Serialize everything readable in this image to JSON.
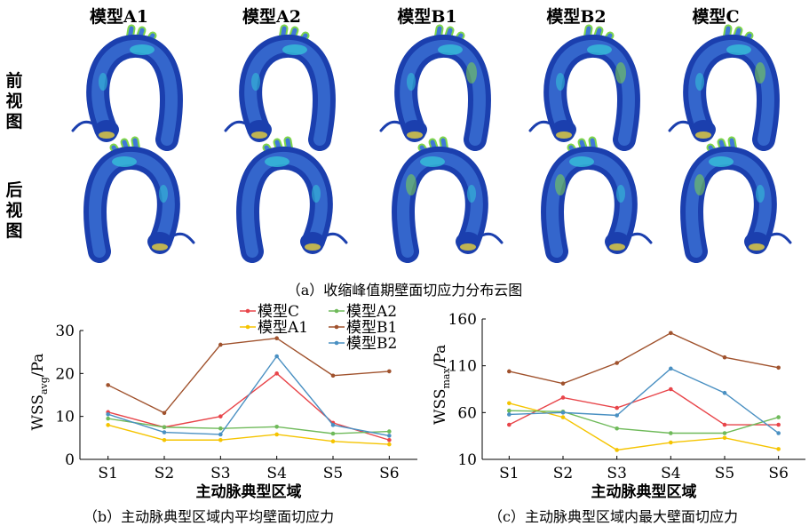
{
  "figure_a": {
    "models": [
      "模型A1",
      "模型A2",
      "模型B1",
      "模型B2",
      "模型C"
    ],
    "row_front": [
      "前",
      "视",
      "图"
    ],
    "row_back": [
      "后",
      "视",
      "图"
    ],
    "caption": "（a）收缩峰值期壁面切应力分布云图"
  },
  "colors": {
    "vessel_dark": "#1b3fae",
    "vessel_mid": "#3f78d8",
    "hot_cyan": "#35c7d9",
    "hot_green": "#7fd64a",
    "hot_yellow": "#e8d23b"
  },
  "chart_data": [
    {
      "type": "line",
      "categories": [
        "S1",
        "S2",
        "S3",
        "S4",
        "S5",
        "S6"
      ],
      "ylabel_main": "WSS",
      "ylabel_sub": "avg",
      "ylabel_unit": "/Pa",
      "xlabel": "主动脉典型区域",
      "ylim": [
        0,
        30
      ],
      "yticks": [
        "0",
        "10",
        "20",
        "30"
      ],
      "legend_position": "top",
      "caption": "（b）主动脉典型区域内平均壁面切应力",
      "series": [
        {
          "name": "模型C",
          "color": "#e8454a",
          "values": [
            11.0,
            7.5,
            10.0,
            20.0,
            8.5,
            4.5
          ]
        },
        {
          "name": "模型A1",
          "color": "#f5c400",
          "values": [
            8.0,
            4.5,
            4.5,
            5.8,
            4.2,
            3.5
          ]
        },
        {
          "name": "模型A2",
          "color": "#6fba5a",
          "values": [
            9.5,
            7.5,
            7.2,
            7.6,
            6.0,
            6.5
          ]
        },
        {
          "name": "模型B1",
          "color": "#a0522d",
          "values": [
            17.3,
            10.8,
            26.7,
            28.2,
            19.5,
            20.5
          ]
        },
        {
          "name": "模型B2",
          "color": "#4a90c2",
          "values": [
            10.5,
            6.3,
            5.8,
            24.0,
            8.0,
            5.5
          ]
        }
      ]
    },
    {
      "type": "line",
      "categories": [
        "S1",
        "S2",
        "S3",
        "S4",
        "S5",
        "S6"
      ],
      "ylabel_main": "WSS",
      "ylabel_sub": "max",
      "ylabel_unit": "/Pa",
      "xlabel": "主动脉典型区域",
      "ylim": [
        10,
        160
      ],
      "yticks": [
        "10",
        "60",
        "110",
        "160"
      ],
      "caption": "（c）主动脉典型区域内最大壁面切应力",
      "series": [
        {
          "color": "#e8454a",
          "values": [
            47,
            76,
            65,
            85,
            47,
            47
          ]
        },
        {
          "color": "#f5c400",
          "values": [
            70,
            55,
            20,
            28,
            33,
            21
          ]
        },
        {
          "color": "#6fba5a",
          "values": [
            62,
            61,
            43,
            38,
            38,
            55
          ]
        },
        {
          "color": "#a0522d",
          "values": [
            104,
            91,
            113,
            145,
            119,
            108
          ]
        },
        {
          "color": "#4a90c2",
          "values": [
            58,
            60,
            57,
            107,
            81,
            38
          ]
        }
      ]
    }
  ]
}
